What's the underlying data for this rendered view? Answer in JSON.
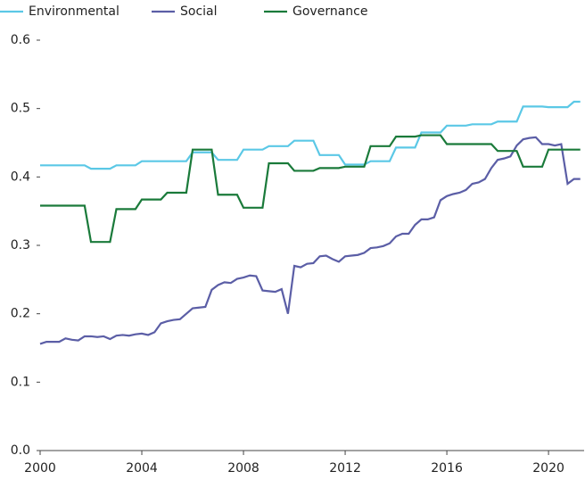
{
  "chart_data": {
    "type": "line",
    "x": [
      2000,
      2000.25,
      2000.5,
      2000.75,
      2001,
      2001.25,
      2001.5,
      2001.75,
      2002,
      2002.25,
      2002.5,
      2002.75,
      2003,
      2003.25,
      2003.5,
      2003.75,
      2004,
      2004.25,
      2004.5,
      2004.75,
      2005,
      2005.25,
      2005.5,
      2005.75,
      2006,
      2006.25,
      2006.5,
      2006.75,
      2007,
      2007.25,
      2007.5,
      2007.75,
      2008,
      2008.25,
      2008.5,
      2008.75,
      2009,
      2009.25,
      2009.5,
      2009.75,
      2010,
      2010.25,
      2010.5,
      2010.75,
      2011,
      2011.25,
      2011.5,
      2011.75,
      2012,
      2012.25,
      2012.5,
      2012.75,
      2013,
      2013.25,
      2013.5,
      2013.75,
      2014,
      2014.25,
      2014.5,
      2014.75,
      2015,
      2015.25,
      2015.5,
      2015.75,
      2016,
      2016.25,
      2016.5,
      2016.75,
      2017,
      2017.25,
      2017.5,
      2017.75,
      2018,
      2018.25,
      2018.5,
      2018.75,
      2019,
      2019.25,
      2019.5,
      2019.75,
      2020,
      2020.25,
      2020.5,
      2020.75,
      2021,
      2021.25
    ],
    "series": [
      {
        "name": "Environmental",
        "color": "#5bc8e6",
        "values": [
          0.417,
          0.417,
          0.417,
          0.417,
          0.417,
          0.417,
          0.417,
          0.417,
          0.412,
          0.412,
          0.412,
          0.412,
          0.417,
          0.417,
          0.417,
          0.417,
          0.423,
          0.423,
          0.423,
          0.423,
          0.423,
          0.423,
          0.423,
          0.423,
          0.436,
          0.436,
          0.436,
          0.436,
          0.425,
          0.425,
          0.425,
          0.425,
          0.44,
          0.44,
          0.44,
          0.44,
          0.445,
          0.445,
          0.445,
          0.445,
          0.453,
          0.453,
          0.453,
          0.453,
          0.432,
          0.432,
          0.432,
          0.432,
          0.418,
          0.418,
          0.418,
          0.418,
          0.423,
          0.423,
          0.423,
          0.423,
          0.443,
          0.443,
          0.443,
          0.443,
          0.465,
          0.465,
          0.465,
          0.465,
          0.475,
          0.475,
          0.475,
          0.475,
          0.477,
          0.477,
          0.477,
          0.477,
          0.481,
          0.481,
          0.481,
          0.481,
          0.503,
          0.503,
          0.503,
          0.503,
          0.502,
          0.502,
          0.502,
          0.502,
          0.51,
          0.51
        ]
      },
      {
        "name": "Social",
        "color": "#5b5ea6",
        "values": [
          0.156,
          0.159,
          0.159,
          0.159,
          0.164,
          0.162,
          0.161,
          0.167,
          0.167,
          0.166,
          0.167,
          0.163,
          0.168,
          0.169,
          0.168,
          0.17,
          0.171,
          0.169,
          0.173,
          0.186,
          0.189,
          0.191,
          0.192,
          0.2,
          0.208,
          0.209,
          0.21,
          0.235,
          0.242,
          0.246,
          0.245,
          0.251,
          0.253,
          0.256,
          0.255,
          0.234,
          0.233,
          0.232,
          0.236,
          0.2,
          0.27,
          0.268,
          0.273,
          0.274,
          0.284,
          0.285,
          0.28,
          0.276,
          0.284,
          0.285,
          0.286,
          0.289,
          0.296,
          0.297,
          0.299,
          0.303,
          0.313,
          0.317,
          0.317,
          0.33,
          0.338,
          0.338,
          0.341,
          0.366,
          0.372,
          0.375,
          0.377,
          0.381,
          0.39,
          0.392,
          0.397,
          0.413,
          0.425,
          0.427,
          0.43,
          0.446,
          0.455,
          0.457,
          0.458,
          0.448,
          0.448,
          0.446,
          0.448,
          0.39,
          0.397,
          0.397
        ]
      },
      {
        "name": "Governance",
        "color": "#1a7a3a",
        "values": [
          0.358,
          0.358,
          0.358,
          0.358,
          0.358,
          0.358,
          0.358,
          0.358,
          0.305,
          0.305,
          0.305,
          0.305,
          0.353,
          0.353,
          0.353,
          0.353,
          0.367,
          0.367,
          0.367,
          0.367,
          0.377,
          0.377,
          0.377,
          0.377,
          0.44,
          0.44,
          0.44,
          0.44,
          0.374,
          0.374,
          0.374,
          0.374,
          0.355,
          0.355,
          0.355,
          0.355,
          0.42,
          0.42,
          0.42,
          0.42,
          0.409,
          0.409,
          0.409,
          0.409,
          0.413,
          0.413,
          0.413,
          0.413,
          0.415,
          0.415,
          0.415,
          0.415,
          0.445,
          0.445,
          0.445,
          0.445,
          0.459,
          0.459,
          0.459,
          0.459,
          0.461,
          0.461,
          0.461,
          0.461,
          0.448,
          0.448,
          0.448,
          0.448,
          0.448,
          0.448,
          0.448,
          0.448,
          0.438,
          0.438,
          0.438,
          0.438,
          0.415,
          0.415,
          0.415,
          0.415,
          0.44,
          0.44,
          0.44,
          0.44,
          0.44,
          0.44
        ]
      }
    ],
    "xlim": [
      2000,
      2021.4
    ],
    "xticks": [
      2000,
      2004,
      2008,
      2012,
      2016,
      2020
    ],
    "ylim": [
      0,
      0.6
    ],
    "yticks": [
      {
        "value": 0,
        "label": "0.0"
      },
      0.1,
      0.2,
      0.3,
      0.4,
      0.5,
      0.6
    ]
  }
}
